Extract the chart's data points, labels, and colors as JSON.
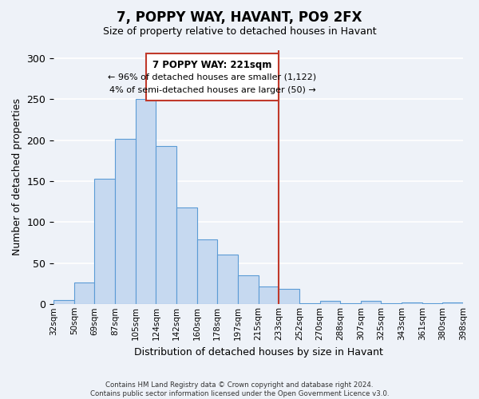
{
  "title": "7, POPPY WAY, HAVANT, PO9 2FX",
  "subtitle": "Size of property relative to detached houses in Havant",
  "xlabel": "Distribution of detached houses by size in Havant",
  "ylabel": "Number of detached properties",
  "bin_labels": [
    "32sqm",
    "50sqm",
    "69sqm",
    "87sqm",
    "105sqm",
    "124sqm",
    "142sqm",
    "160sqm",
    "178sqm",
    "197sqm",
    "215sqm",
    "233sqm",
    "252sqm",
    "270sqm",
    "288sqm",
    "307sqm",
    "325sqm",
    "343sqm",
    "361sqm",
    "380sqm",
    "398sqm"
  ],
  "bar_values": [
    5,
    27,
    153,
    202,
    250,
    193,
    118,
    79,
    61,
    35,
    22,
    19,
    1,
    4,
    1,
    4,
    1,
    2,
    1,
    2
  ],
  "bar_color": "#c6d9f0",
  "bar_edge_color": "#5b9bd5",
  "vline_x": 10.5,
  "vline_color": "#c0392b",
  "annotation_title": "7 POPPY WAY: 221sqm",
  "annotation_line1": "← 96% of detached houses are smaller (1,122)",
  "annotation_line2": "4% of semi-detached houses are larger (50) →",
  "annotation_box_color": "#ffffff",
  "annotation_box_edge": "#c0392b",
  "footer_line1": "Contains HM Land Registry data © Crown copyright and database right 2024.",
  "footer_line2": "Contains public sector information licensed under the Open Government Licence v3.0.",
  "ylim": [
    0,
    310
  ],
  "background_color": "#eef2f8",
  "grid_color": "#ffffff"
}
